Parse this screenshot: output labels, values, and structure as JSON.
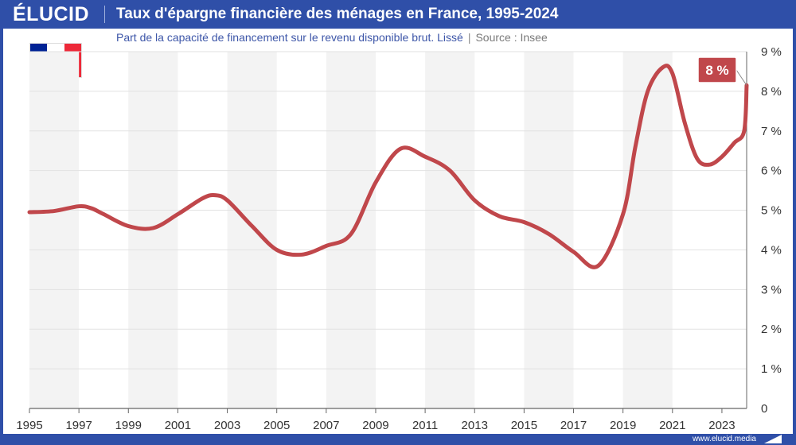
{
  "brand": "ÉLUCID",
  "title": "Taux d'épargne financière des ménages en France, 1995-2024",
  "subtitle": "Part de la capacité de financement sur le revenu disponible brut. Lissé",
  "subtitle_separator": "|",
  "source": "Source : Insee",
  "footer_url": "www.elucid.media",
  "flag_colors": [
    "#002395",
    "#ffffff",
    "#ed2939"
  ],
  "colors": {
    "brand_blue": "#2f4fa8",
    "line": "#c0474b",
    "band": "#f3f3f3",
    "callout": "#c0474b"
  },
  "callout_label": "8 %",
  "chart_data": {
    "type": "line",
    "title": "Taux d'épargne financière des ménages en France, 1995-2024",
    "xlabel": "",
    "ylabel": "",
    "xlim": [
      1995,
      2024
    ],
    "ylim": [
      0,
      9
    ],
    "x_ticks": [
      1995,
      1997,
      1999,
      2001,
      2003,
      2005,
      2007,
      2009,
      2011,
      2013,
      2015,
      2017,
      2019,
      2021,
      2023
    ],
    "x_tick_labels": [
      "1995",
      "1997",
      "1999",
      "2001",
      "2003",
      "2005",
      "2007",
      "2009",
      "2011",
      "2013",
      "2015",
      "2017",
      "2019",
      "2021",
      "2023"
    ],
    "y_ticks": [
      0,
      1,
      2,
      3,
      4,
      5,
      6,
      7,
      8,
      9
    ],
    "y_tick_labels": [
      "0",
      "1 %",
      "2 %",
      "3 %",
      "4 %",
      "5 %",
      "6 %",
      "7 %",
      "8 %",
      "9 %"
    ],
    "y_axis_position": "right",
    "grid": "horizontal",
    "series": [
      {
        "x": [
          1995,
          1996,
          1997,
          1997.5,
          1998,
          1999,
          2000,
          2001,
          2002,
          2002.5,
          2003,
          2004,
          2005,
          2006,
          2007,
          2008,
          2009,
          2010,
          2011,
          2012,
          2013,
          2014,
          2015,
          2016,
          2017,
          2018,
          2019,
          2019.5,
          2020,
          2020.6,
          2021,
          2021.5,
          2022,
          2022.5,
          2023,
          2023.5,
          2023.9,
          2024
        ],
        "y": [
          4.95,
          4.98,
          5.1,
          5.05,
          4.9,
          4.6,
          4.55,
          4.9,
          5.3,
          5.38,
          5.25,
          4.6,
          4.0,
          3.88,
          4.1,
          4.4,
          5.7,
          6.55,
          6.35,
          6.0,
          5.25,
          4.85,
          4.7,
          4.4,
          3.95,
          3.6,
          4.9,
          6.6,
          8.0,
          8.6,
          8.45,
          7.2,
          6.3,
          6.15,
          6.35,
          6.7,
          7.0,
          8.15
        ]
      }
    ]
  }
}
